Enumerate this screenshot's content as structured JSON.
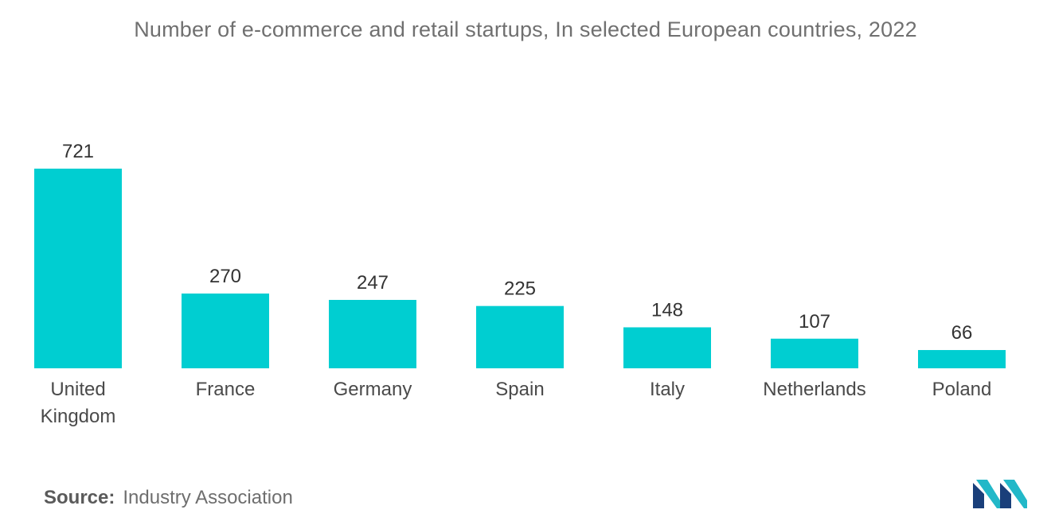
{
  "chart_data": {
    "type": "bar",
    "title": "Number of e-commerce and retail startups, In selected European countries, 2022",
    "categories": [
      "United Kingdom",
      "France",
      "Germany",
      "Spain",
      "Italy",
      "Netherlands",
      "Poland"
    ],
    "category_lines": [
      [
        "United",
        "Kingdom"
      ],
      [
        "France"
      ],
      [
        "Germany"
      ],
      [
        "Spain"
      ],
      [
        "Italy"
      ],
      [
        "Netherlands"
      ],
      [
        "Poland"
      ]
    ],
    "values": [
      721,
      270,
      247,
      225,
      148,
      107,
      66
    ],
    "data_labels": [
      "721",
      "270",
      "247",
      "225",
      "148",
      "107",
      "66"
    ],
    "xlabel": "",
    "ylabel": "",
    "ylim": [
      0,
      721
    ],
    "grid": false,
    "legend": "none",
    "bar_color": "#00CED1"
  },
  "source": {
    "label": "Source:",
    "text": "Industry Association"
  },
  "logo": {
    "icon": "mordor-intelligence-logo-icon",
    "colors": [
      "#1a3f7a",
      "#22b8c8"
    ]
  }
}
